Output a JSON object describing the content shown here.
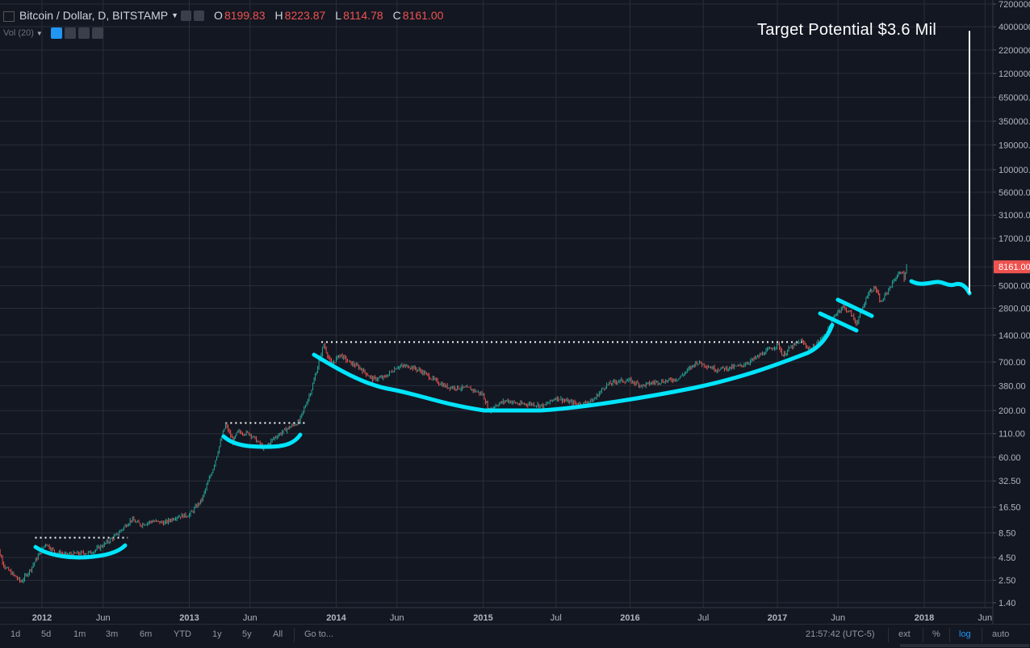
{
  "header": {
    "symbol": "Bitcoin / Dollar, D, BITSTAMP",
    "o_label": "O",
    "o": "8199.83",
    "h_label": "H",
    "h": "8223.87",
    "l_label": "L",
    "l": "8114.78",
    "c_label": "C",
    "c": "8161.00"
  },
  "volume": {
    "label": "Vol (20)"
  },
  "annotation": {
    "target": "Target Potential $3.6 Mil"
  },
  "price_badge": "8161.00",
  "toolbar": {
    "ranges": [
      "1d",
      "5d",
      "1m",
      "3m",
      "6m",
      "YTD",
      "1y",
      "5y",
      "All"
    ],
    "goto": "Go to...",
    "time": "21:57:42 (UTC-5)",
    "ext": "ext",
    "percent": "%",
    "log": "log",
    "auto": "auto"
  },
  "colors": {
    "background": "#131722",
    "grid": "#2a2e39",
    "up": "#26a69a",
    "down": "#ef5350",
    "curve": "#00e5ff",
    "badge": "#ef5350"
  },
  "chart_data": {
    "type": "line",
    "title": "Bitcoin / Dollar, D, BITSTAMP",
    "scale": "log",
    "grid": true,
    "y_ticks": [
      1.4,
      2.5,
      4.5,
      8.5,
      16.5,
      32.5,
      60.0,
      110.0,
      200.0,
      380.0,
      700.0,
      1400.0,
      2800.0,
      5000.0,
      8161.0,
      17000.0,
      31000.0,
      56000.0,
      100000.0,
      190000.0,
      350000.0,
      650000.0,
      1200000.0,
      2200000.0,
      4000000.0,
      7200000.0
    ],
    "y_tick_labels": [
      "1.40",
      "2.50",
      "4.50",
      "8.50",
      "16.50",
      "32.50",
      "60.00",
      "110.00",
      "200.00",
      "380.00",
      "700.00",
      "1400.00",
      "2800.00",
      "5000.00",
      "8161.00",
      "17000.00",
      "31000.00",
      "56000.00",
      "100000.",
      "190000.",
      "350000.",
      "650000.",
      "1200000.",
      "2200000.",
      "4000000.",
      "7200000."
    ],
    "x_ticks": [
      "2012",
      "Jun",
      "2013",
      "Jun",
      "2014",
      "Jun",
      "2015",
      "Jul",
      "2016",
      "Jul",
      "2017",
      "Jun",
      "2018",
      "Jun"
    ],
    "x_tick_dates": [
      "2012-01-01",
      "2012-06-01",
      "2013-01-01",
      "2013-06-01",
      "2014-01-01",
      "2014-06-01",
      "2015-01-01",
      "2015-07-01",
      "2016-01-01",
      "2016-07-01",
      "2017-01-01",
      "2017-06-01",
      "2018-01-01",
      "2018-06-01"
    ],
    "series": [
      {
        "values": [
          [
            "2011-09-01",
            8.0
          ],
          [
            "2011-10-01",
            3.5
          ],
          [
            "2011-11-10",
            2.4
          ],
          [
            "2011-12-01",
            3.2
          ],
          [
            "2012-01-10",
            6.5
          ],
          [
            "2012-02-01",
            5.2
          ],
          [
            "2012-03-01",
            4.8
          ],
          [
            "2012-04-01",
            5.0
          ],
          [
            "2012-05-01",
            5.1
          ],
          [
            "2012-06-01",
            6.2
          ],
          [
            "2012-07-01",
            7.8
          ],
          [
            "2012-08-10",
            12.0
          ],
          [
            "2012-09-01",
            10.5
          ],
          [
            "2012-10-01",
            11.5
          ],
          [
            "2012-11-01",
            11.0
          ],
          [
            "2012-12-01",
            13.0
          ],
          [
            "2013-01-01",
            13.5
          ],
          [
            "2013-02-01",
            20.0
          ],
          [
            "2013-03-01",
            45.0
          ],
          [
            "2013-04-01",
            140.0
          ],
          [
            "2013-04-20",
            90.0
          ],
          [
            "2013-05-01",
            115.0
          ],
          [
            "2013-06-01",
            110.0
          ],
          [
            "2013-07-05",
            75.0
          ],
          [
            "2013-08-01",
            100.0
          ],
          [
            "2013-09-01",
            125.0
          ],
          [
            "2013-10-01",
            150.0
          ],
          [
            "2013-11-01",
            350.0
          ],
          [
            "2013-12-01",
            1100.0
          ],
          [
            "2013-12-20",
            650.0
          ],
          [
            "2014-01-10",
            850.0
          ],
          [
            "2014-02-01",
            700.0
          ],
          [
            "2014-03-01",
            600.0
          ],
          [
            "2014-04-01",
            450.0
          ],
          [
            "2014-05-01",
            470.0
          ],
          [
            "2014-06-01",
            620.0
          ],
          [
            "2014-07-01",
            630.0
          ],
          [
            "2014-08-01",
            550.0
          ],
          [
            "2014-09-01",
            440.0
          ],
          [
            "2014-10-01",
            370.0
          ],
          [
            "2014-11-01",
            360.0
          ],
          [
            "2014-12-01",
            350.0
          ],
          [
            "2015-01-01",
            300.0
          ],
          [
            "2015-01-15",
            200.0
          ],
          [
            "2015-02-01",
            230.0
          ],
          [
            "2015-03-01",
            260.0
          ],
          [
            "2015-04-01",
            235.0
          ],
          [
            "2015-05-01",
            238.0
          ],
          [
            "2015-06-01",
            225.0
          ],
          [
            "2015-07-01",
            280.0
          ],
          [
            "2015-08-01",
            250.0
          ],
          [
            "2015-09-01",
            235.0
          ],
          [
            "2015-10-01",
            260.0
          ],
          [
            "2015-11-01",
            380.0
          ],
          [
            "2015-12-01",
            430.0
          ],
          [
            "2016-01-01",
            430.0
          ],
          [
            "2016-02-01",
            380.0
          ],
          [
            "2016-03-01",
            415.0
          ],
          [
            "2016-04-01",
            430.0
          ],
          [
            "2016-05-01",
            460.0
          ],
          [
            "2016-06-15",
            700.0
          ],
          [
            "2016-07-01",
            660.0
          ],
          [
            "2016-08-01",
            580.0
          ],
          [
            "2016-09-01",
            600.0
          ],
          [
            "2016-10-01",
            630.0
          ],
          [
            "2016-11-01",
            740.0
          ],
          [
            "2016-12-01",
            900.0
          ],
          [
            "2017-01-03",
            1100.0
          ],
          [
            "2017-01-15",
            820.0
          ],
          [
            "2017-02-01",
            1000.0
          ],
          [
            "2017-03-01",
            1200.0
          ],
          [
            "2017-03-25",
            950.0
          ],
          [
            "2017-04-15",
            1200.0
          ],
          [
            "2017-05-01",
            1450.0
          ],
          [
            "2017-05-25",
            2400.0
          ],
          [
            "2017-06-12",
            2900.0
          ],
          [
            "2017-07-01",
            2500.0
          ],
          [
            "2017-07-16",
            1900.0
          ],
          [
            "2017-08-01",
            2800.0
          ],
          [
            "2017-08-15",
            4200.0
          ],
          [
            "2017-09-01",
            4800.0
          ],
          [
            "2017-09-15",
            3200.0
          ],
          [
            "2017-10-01",
            4300.0
          ],
          [
            "2017-10-20",
            6000.0
          ],
          [
            "2017-11-06",
            7400.0
          ],
          [
            "2017-11-12",
            6000.0
          ],
          [
            "2017-11-18",
            8161.0
          ]
        ]
      }
    ],
    "last_price": 8161.0,
    "annotations": [
      {
        "kind": "resistance",
        "value": 7.5,
        "from": "2011-12-15",
        "to": "2012-08-01"
      },
      {
        "kind": "resistance",
        "value": 145.0,
        "from": "2013-04-01",
        "to": "2013-10-15"
      },
      {
        "kind": "resistance",
        "value": 1170.0,
        "from": "2013-11-25",
        "to": "2017-03-10"
      }
    ],
    "target": 3600000
  }
}
